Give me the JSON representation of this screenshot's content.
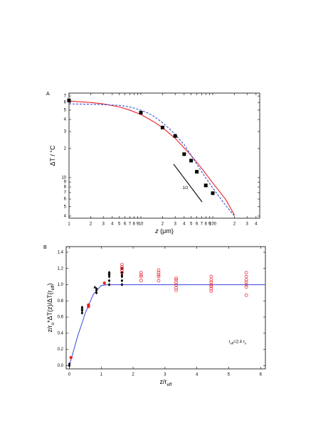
{
  "chart_data": [
    {
      "type": "scatter",
      "panel": "A",
      "xscale": "log",
      "yscale": "log",
      "xlabel": [
        {
          "text": "z",
          "italic": true
        },
        {
          "text": " (μm)"
        }
      ],
      "ylabel": [
        {
          "text": "ΔT  / °C"
        }
      ],
      "xlim": [
        1,
        450
      ],
      "ylim": [
        3.8,
        75
      ],
      "xticks": [
        1,
        {
          "value": 2,
          "label": "2"
        },
        3,
        4,
        5,
        6,
        7,
        8,
        9,
        10,
        {
          "value": 20,
          "label": "2"
        },
        {
          "value": 30,
          "label": "3"
        },
        {
          "value": 40,
          "label": "4"
        },
        {
          "value": 50,
          "label": "5"
        },
        {
          "value": 60,
          "label": "6"
        },
        {
          "value": 70,
          "label": "7"
        },
        {
          "value": 80,
          "label": "8"
        },
        {
          "value": 90,
          "label": "9"
        },
        100,
        {
          "value": 200,
          "label": "2"
        },
        {
          "value": 300,
          "label": "3"
        },
        {
          "value": 400,
          "label": "4"
        }
      ],
      "yticks": [
        4,
        5,
        6,
        7,
        8,
        9,
        10,
        {
          "value": 20,
          "label": "2"
        },
        {
          "value": 30,
          "label": "3"
        },
        {
          "value": 40,
          "label": "4"
        },
        {
          "value": 50,
          "label": "5"
        },
        {
          "value": 60,
          "label": "6"
        },
        {
          "value": 70,
          "label": "7"
        }
      ],
      "series": [
        {
          "style": "line",
          "color": "#e8202a",
          "x": [
            1,
            2,
            3,
            5,
            7,
            10,
            15,
            20,
            30,
            50,
            70,
            100,
            150,
            200
          ],
          "values": [
            62,
            60,
            58,
            54,
            50,
            45,
            38,
            33,
            25.5,
            17,
            12.5,
            8.8,
            6,
            4.1
          ]
        },
        {
          "style": "dashed",
          "color": "#3a4fd0",
          "x": [
            1,
            2,
            3,
            5,
            7,
            10,
            13,
            16,
            20,
            25,
            30,
            40,
            50,
            70,
            100,
            150,
            200
          ],
          "values": [
            58,
            57.5,
            57,
            56,
            54,
            50,
            46,
            42,
            37,
            32,
            28,
            22,
            17,
            11.5,
            7.8,
            5.2,
            4
          ]
        },
        {
          "style": "marker",
          "marker": "square",
          "color": "#000",
          "x": [
            1,
            10,
            20,
            30,
            40,
            50,
            60,
            80,
            100
          ],
          "values": [
            63,
            47,
            33,
            27,
            17.5,
            15,
            11.5,
            8.3,
            6.9
          ]
        },
        {
          "style": "line",
          "name": "1/z",
          "color": "#000",
          "x": [
            28.5,
            71
          ],
          "values": [
            13.8,
            5.6
          ]
        }
      ],
      "annotations": [
        {
          "parts": [
            {
              "text": "1/z"
            }
          ],
          "x": 38,
          "y": 7.9
        }
      ]
    },
    {
      "type": "scatter",
      "panel": "B",
      "xlabel": [
        {
          "text": "z/r"
        },
        {
          "text": "eff",
          "sub": true
        }
      ],
      "ylabel": [
        {
          "text": "z/r"
        },
        {
          "text": "o",
          "sub": true
        },
        {
          "text": "*ΔT(z)/ΔT(r"
        },
        {
          "text": "eff",
          "sub": true
        },
        {
          "text": ")"
        }
      ],
      "xlim": [
        -0.1,
        6.15
      ],
      "ylim": [
        -0.04,
        1.47
      ],
      "xticks": [
        0,
        1,
        2,
        3,
        4,
        5,
        6
      ],
      "yticks": [
        {
          "value": 0,
          "label": "0.0"
        },
        {
          "value": 0.2,
          "label": "0.2"
        },
        {
          "value": 0.4,
          "label": "0.4"
        },
        {
          "value": 0.6,
          "label": "0.6"
        },
        {
          "value": 0.8,
          "label": "0.8"
        },
        {
          "value": 1,
          "label": "1.0"
        },
        {
          "value": 1.2,
          "label": "1.2"
        },
        {
          "value": 1.4,
          "label": "1.4"
        }
      ],
      "series": [
        {
          "style": "line",
          "color": "#4a55e0",
          "x": [
            0,
            0.25,
            0.5,
            0.75,
            1.0,
            1.2,
            6.15
          ],
          "values": [
            0,
            0.35,
            0.65,
            0.88,
            0.99,
            1.0,
            1.0
          ]
        },
        {
          "style": "marker",
          "marker": "diamond",
          "color": "#000",
          "x": [
            0,
            0,
            0.4,
            0.4,
            0.4,
            0.4,
            0.85,
            0.85,
            0.85,
            1.25,
            1.25,
            1.25,
            1.25,
            1.25,
            1.65,
            1.65,
            1.65,
            1.65,
            1.65,
            1.65
          ],
          "values": [
            0,
            0.02,
            0.65,
            0.68,
            0.7,
            0.72,
            0.9,
            0.93,
            0.95,
            1.0,
            1.05,
            1.1,
            1.12,
            1.15,
            1.0,
            1.05,
            1.1,
            1.12,
            1.15,
            1.2
          ]
        },
        {
          "style": "marker",
          "marker": "triangle",
          "color": "#000",
          "x": [
            0.8,
            1.25
          ],
          "values": [
            0.97,
            1.14
          ]
        },
        {
          "style": "marker",
          "marker": "circle",
          "color": "#e8202a",
          "x": [
            0.05,
            0.6,
            0.6,
            1.1
          ],
          "values": [
            0.1,
            0.73,
            0.75,
            1.02
          ]
        },
        {
          "style": "marker",
          "marker": "open-circle",
          "color": "#e8202a",
          "x": [
            1.65,
            1.65,
            1.65,
            1.65,
            1.65,
            2.25,
            2.25,
            2.25,
            2.25,
            2.8,
            2.8,
            2.8,
            2.8,
            2.8,
            3.35,
            3.35,
            3.35,
            3.35,
            3.35,
            3.35,
            4.45,
            4.45,
            4.45,
            4.45,
            4.45,
            4.45,
            4.45,
            5.55,
            5.55,
            5.55,
            5.55,
            5.55,
            5.55,
            5.55
          ],
          "values": [
            1.15,
            1.18,
            1.2,
            1.22,
            1.25,
            1.05,
            1.1,
            1.12,
            1.15,
            1.05,
            1.1,
            1.12,
            1.15,
            1.18,
            0.93,
            0.96,
            1.0,
            1.03,
            1.06,
            1.08,
            0.92,
            0.95,
            0.98,
            1.0,
            1.03,
            1.06,
            1.1,
            0.87,
            0.97,
            1.0,
            1.03,
            1.06,
            1.1,
            1.15
          ]
        }
      ],
      "annotations": [
        {
          "parts": [
            {
              "text": "r"
            },
            {
              "text": "eff",
              "sub": true
            },
            {
              "text": "=2.4 r"
            },
            {
              "text": "o",
              "sub": true
            }
          ],
          "x": 5.0,
          "y": 0.3
        }
      ]
    }
  ]
}
